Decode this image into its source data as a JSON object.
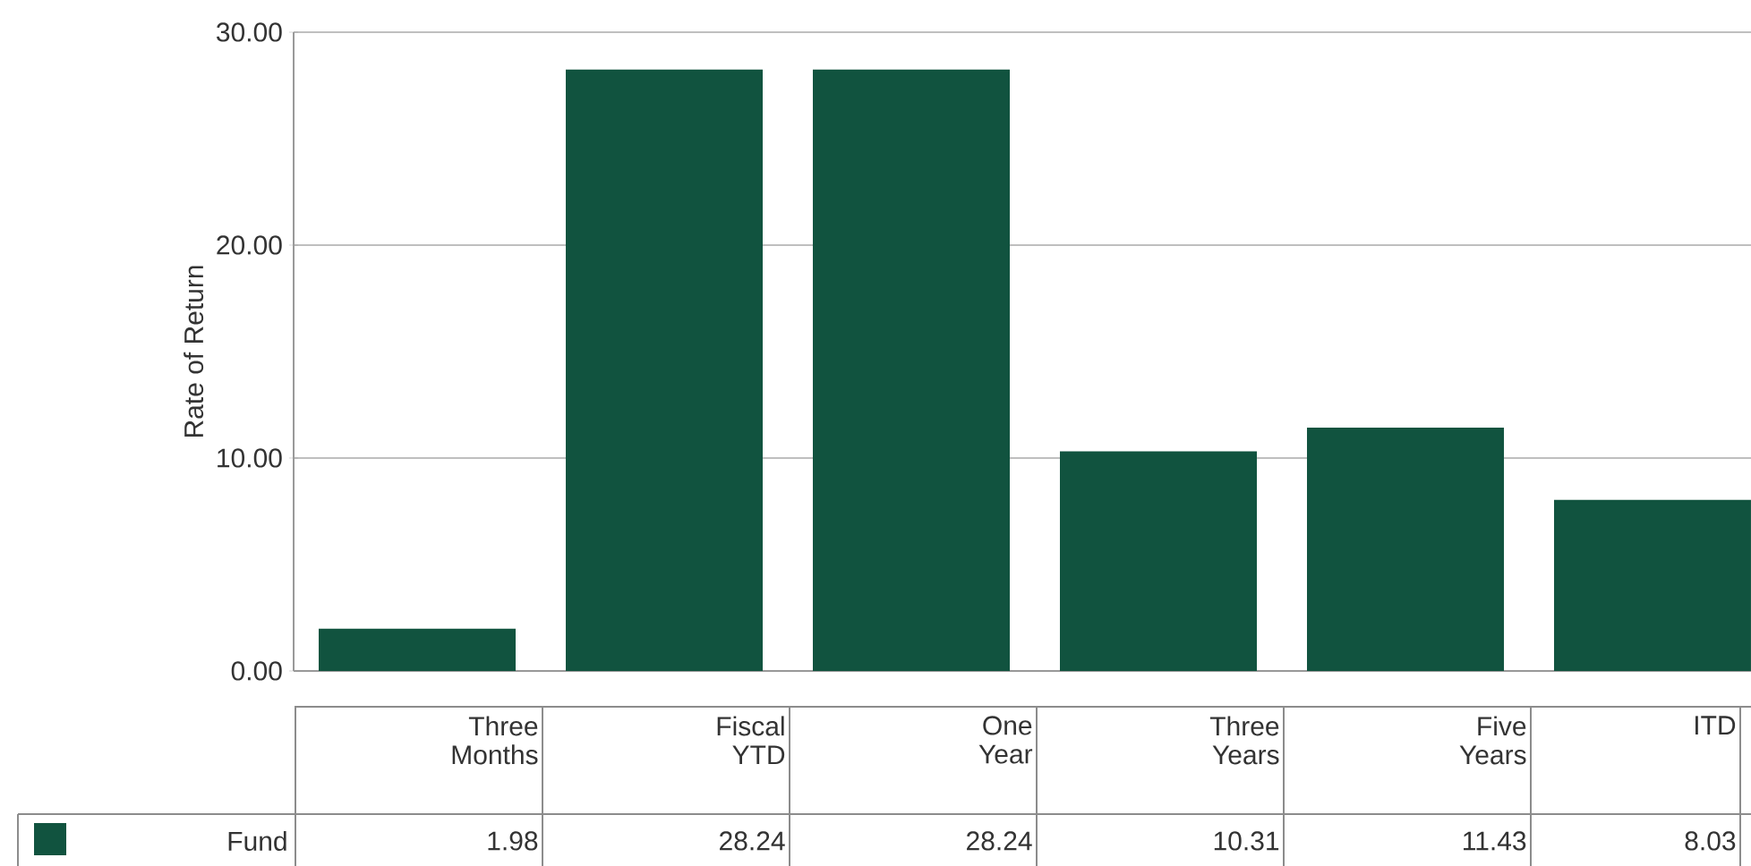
{
  "chart_data": {
    "type": "bar",
    "ylabel": "Rate of Return",
    "categories": [
      "Three Months",
      "Fiscal YTD",
      "One Year",
      "Three Years",
      "Five Years",
      "ITD"
    ],
    "series": [
      {
        "name": "Fund",
        "color": "#11533f",
        "values": [
          1.98,
          28.24,
          28.24,
          10.31,
          11.43,
          8.03
        ]
      }
    ],
    "ylim": [
      0,
      30
    ],
    "yticks": [
      {
        "value": 0,
        "label": "0.00"
      },
      {
        "value": 10,
        "label": "10.00"
      },
      {
        "value": 20,
        "label": "20.00"
      },
      {
        "value": 30,
        "label": "30.00"
      }
    ],
    "grid": "y",
    "legend": "bottom",
    "data_labels": true
  }
}
